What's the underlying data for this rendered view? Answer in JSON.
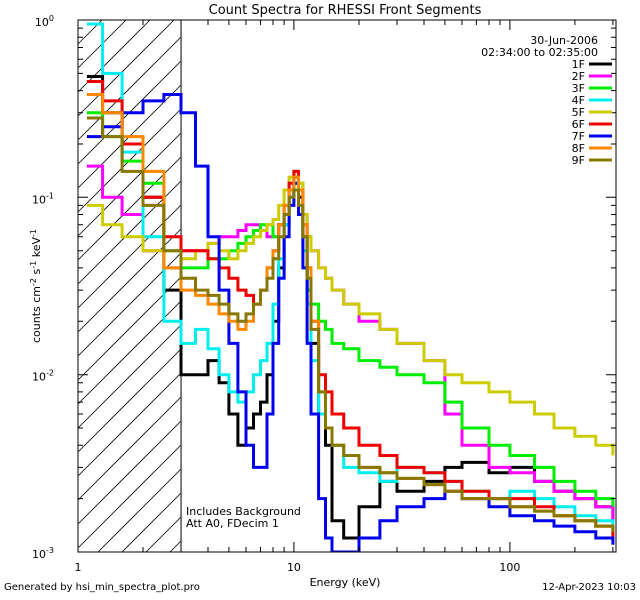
{
  "chart_data": {
    "type": "line",
    "title": "Count Spectra for RHESSI Front Segments",
    "xlabel": "Energy (keV)",
    "ylabel": "counts cm",
    "ylabel_sup1": "-2",
    "ylabel_mid": " s",
    "ylabel_sup2": "-1",
    "ylabel_end": " keV",
    "ylabel_sup3": "-1",
    "xscale": "log",
    "yscale": "log",
    "xlim": [
      1,
      310
    ],
    "ylim": [
      0.001,
      1.0
    ],
    "x_ticks": [
      {
        "value": 1,
        "label": "1"
      },
      {
        "value": 10,
        "label": "10"
      },
      {
        "value": 100,
        "label": "100"
      }
    ],
    "y_ticks": [
      {
        "value": 0.001,
        "base": "10",
        "exp": "-3"
      },
      {
        "value": 0.01,
        "base": "10",
        "exp": "-2"
      },
      {
        "value": 0.1,
        "base": "10",
        "exp": "-1"
      },
      {
        "value": 1,
        "base": "10",
        "exp": "0"
      }
    ],
    "date": "30-Jun-2006",
    "time_range": "02:34:00 to 02:35:00",
    "notes": [
      "Includes Background",
      "Att A0, FDecim 1"
    ],
    "shaded_region_below_kev": 3,
    "series": [
      {
        "name": "1F",
        "color": "#000000",
        "x": [
          1.1,
          1.3,
          1.6,
          2.0,
          2.5,
          3.0,
          3.5,
          4.0,
          4.5,
          5.0,
          5.5,
          6.0,
          6.5,
          7.0,
          7.5,
          8.0,
          8.5,
          9.0,
          9.5,
          10.0,
          10.5,
          11.0,
          11.5,
          12.0,
          13.0,
          14.0,
          15.0,
          17.0,
          20.0,
          25.0,
          30.0,
          40.0,
          50.0,
          60.0,
          80.0,
          100.0,
          130.0,
          160.0,
          200.0,
          250.0,
          300.0
        ],
        "y": [
          0.48,
          0.3,
          0.2,
          0.1,
          0.03,
          0.01,
          0.01,
          0.012,
          0.009,
          0.006,
          0.004,
          0.005,
          0.006,
          0.007,
          0.01,
          0.02,
          0.04,
          0.07,
          0.1,
          0.12,
          0.1,
          0.06,
          0.03,
          0.015,
          0.006,
          0.004,
          0.0015,
          0.0012,
          0.0018,
          0.0025,
          0.0022,
          0.0025,
          0.003,
          0.0032,
          0.0028,
          0.003,
          0.0025,
          0.0022,
          0.002,
          0.0018,
          0.0015
        ]
      },
      {
        "name": "2F",
        "color": "#ff00ff",
        "x": [
          1.1,
          1.3,
          1.6,
          2.0,
          2.5,
          3.0,
          3.5,
          4.0,
          4.5,
          5.0,
          5.5,
          6.0,
          6.5,
          7.0,
          7.5,
          8.0,
          8.5,
          9.0,
          9.5,
          10.0,
          10.5,
          11.0,
          11.5,
          12.0,
          13.0,
          14.0,
          15.0,
          17.0,
          20.0,
          25.0,
          30.0,
          40.0,
          50.0,
          60.0,
          80.0,
          100.0,
          130.0,
          160.0,
          200.0,
          250.0,
          300.0
        ],
        "y": [
          0.15,
          0.1,
          0.08,
          0.05,
          0.04,
          0.05,
          0.05,
          0.055,
          0.06,
          0.06,
          0.065,
          0.07,
          0.07,
          0.065,
          0.06,
          0.06,
          0.07,
          0.08,
          0.1,
          0.13,
          0.11,
          0.08,
          0.06,
          0.05,
          0.04,
          0.035,
          0.03,
          0.025,
          0.02,
          0.018,
          0.015,
          0.012,
          0.006,
          0.004,
          0.003,
          0.0028,
          0.0025,
          0.0022,
          0.002,
          0.0018,
          0.0015
        ]
      },
      {
        "name": "3F",
        "color": "#00ee00",
        "x": [
          1.1,
          1.3,
          1.6,
          2.0,
          2.5,
          3.0,
          3.5,
          4.0,
          4.5,
          5.0,
          5.5,
          6.0,
          6.5,
          7.0,
          7.5,
          8.0,
          8.5,
          9.0,
          9.5,
          10.0,
          10.5,
          11.0,
          11.5,
          12.0,
          13.0,
          14.0,
          15.0,
          17.0,
          20.0,
          25.0,
          30.0,
          40.0,
          50.0,
          60.0,
          80.0,
          100.0,
          130.0,
          160.0,
          200.0,
          250.0,
          300.0
        ],
        "y": [
          0.3,
          0.22,
          0.16,
          0.12,
          0.05,
          0.04,
          0.04,
          0.045,
          0.045,
          0.05,
          0.055,
          0.06,
          0.065,
          0.07,
          0.07,
          0.06,
          0.07,
          0.08,
          0.1,
          0.13,
          0.12,
          0.06,
          0.03,
          0.025,
          0.02,
          0.018,
          0.015,
          0.014,
          0.012,
          0.011,
          0.01,
          0.009,
          0.007,
          0.005,
          0.004,
          0.0035,
          0.003,
          0.0025,
          0.0022,
          0.002,
          0.0018
        ]
      },
      {
        "name": "4F",
        "color": "#00eeee",
        "x": [
          1.1,
          1.3,
          1.6,
          2.0,
          2.5,
          3.0,
          3.5,
          4.0,
          4.5,
          5.0,
          5.5,
          6.0,
          6.5,
          7.0,
          7.5,
          8.0,
          8.5,
          9.0,
          9.5,
          10.0,
          10.5,
          11.0,
          11.5,
          12.0,
          13.0,
          14.0,
          15.0,
          17.0,
          20.0,
          25.0,
          30.0,
          40.0,
          50.0,
          60.0,
          80.0,
          100.0,
          130.0,
          160.0,
          200.0,
          250.0,
          300.0
        ],
        "y": [
          0.95,
          0.5,
          0.18,
          0.06,
          0.02,
          0.015,
          0.018,
          0.014,
          0.01,
          0.008,
          0.007,
          0.008,
          0.01,
          0.012,
          0.015,
          0.025,
          0.045,
          0.07,
          0.1,
          0.12,
          0.09,
          0.05,
          0.025,
          0.012,
          0.006,
          0.005,
          0.004,
          0.003,
          0.0028,
          0.0025,
          0.003,
          0.0028,
          0.0025,
          0.0022,
          0.002,
          0.0022,
          0.002,
          0.0018,
          0.0016,
          0.0015,
          0.0014
        ]
      },
      {
        "name": "5F",
        "color": "#cccc00",
        "x": [
          1.1,
          1.3,
          1.6,
          2.0,
          2.5,
          3.0,
          3.5,
          4.0,
          4.5,
          5.0,
          5.5,
          6.0,
          6.5,
          7.0,
          7.5,
          8.0,
          8.5,
          9.0,
          9.5,
          10.0,
          10.5,
          11.0,
          11.5,
          12.0,
          13.0,
          14.0,
          15.0,
          17.0,
          20.0,
          25.0,
          30.0,
          40.0,
          50.0,
          60.0,
          80.0,
          100.0,
          130.0,
          160.0,
          200.0,
          250.0,
          300.0
        ],
        "y": [
          0.09,
          0.07,
          0.06,
          0.05,
          0.04,
          0.045,
          0.05,
          0.055,
          0.05,
          0.045,
          0.05,
          0.055,
          0.06,
          0.065,
          0.07,
          0.075,
          0.09,
          0.11,
          0.13,
          0.14,
          0.12,
          0.08,
          0.06,
          0.05,
          0.04,
          0.035,
          0.03,
          0.025,
          0.022,
          0.018,
          0.015,
          0.012,
          0.01,
          0.009,
          0.008,
          0.007,
          0.006,
          0.005,
          0.0045,
          0.004,
          0.0035
        ]
      },
      {
        "name": "6F",
        "color": "#ee0000",
        "x": [
          1.1,
          1.3,
          1.6,
          2.0,
          2.5,
          3.0,
          3.5,
          4.0,
          4.5,
          5.0,
          5.5,
          6.0,
          6.5,
          7.0,
          7.5,
          8.0,
          8.5,
          9.0,
          9.5,
          10.0,
          10.5,
          11.0,
          11.5,
          12.0,
          13.0,
          14.0,
          15.0,
          17.0,
          20.0,
          25.0,
          30.0,
          40.0,
          50.0,
          60.0,
          80.0,
          100.0,
          130.0,
          160.0,
          200.0,
          250.0,
          300.0
        ],
        "y": [
          0.45,
          0.35,
          0.2,
          0.1,
          0.06,
          0.05,
          0.05,
          0.045,
          0.04,
          0.035,
          0.03,
          0.028,
          0.025,
          0.03,
          0.04,
          0.05,
          0.07,
          0.09,
          0.12,
          0.14,
          0.11,
          0.07,
          0.04,
          0.02,
          0.01,
          0.008,
          0.006,
          0.005,
          0.004,
          0.0035,
          0.003,
          0.0028,
          0.0025,
          0.0022,
          0.002,
          0.002,
          0.0018,
          0.0016,
          0.0015,
          0.0014,
          0.0012
        ]
      },
      {
        "name": "7F",
        "color": "#0000ee",
        "x": [
          1.1,
          1.3,
          1.6,
          2.0,
          2.5,
          3.0,
          3.5,
          4.0,
          4.5,
          5.0,
          5.5,
          6.0,
          6.5,
          7.0,
          7.5,
          8.0,
          8.5,
          9.0,
          9.5,
          10.0,
          10.5,
          11.0,
          11.5,
          12.0,
          13.0,
          14.0,
          15.0,
          17.0,
          20.0,
          25.0,
          30.0,
          40.0,
          50.0,
          60.0,
          80.0,
          100.0,
          130.0,
          160.0,
          200.0,
          250.0,
          300.0
        ],
        "y": [
          0.22,
          0.25,
          0.3,
          0.35,
          0.38,
          0.3,
          0.15,
          0.06,
          0.03,
          0.015,
          0.008,
          0.004,
          0.003,
          0.003,
          0.006,
          0.015,
          0.035,
          0.06,
          0.09,
          0.12,
          0.08,
          0.04,
          0.015,
          0.006,
          0.002,
          0.0012,
          0.001,
          0.001,
          0.0012,
          0.0015,
          0.0018,
          0.002,
          0.0022,
          0.002,
          0.0018,
          0.0016,
          0.0015,
          0.0014,
          0.0013,
          0.0012,
          0.0011
        ]
      },
      {
        "name": "8F",
        "color": "#ff8800",
        "x": [
          1.1,
          1.3,
          1.6,
          2.0,
          2.5,
          3.0,
          3.5,
          4.0,
          4.5,
          5.0,
          5.5,
          6.0,
          6.5,
          7.0,
          7.5,
          8.0,
          8.5,
          9.0,
          9.5,
          10.0,
          10.5,
          11.0,
          11.5,
          12.0,
          13.0,
          14.0,
          15.0,
          17.0,
          20.0,
          25.0,
          30.0,
          40.0,
          50.0,
          60.0,
          80.0,
          100.0,
          130.0,
          160.0,
          200.0,
          250.0,
          300.0
        ],
        "y": [
          0.38,
          0.3,
          0.22,
          0.14,
          0.04,
          0.03,
          0.028,
          0.025,
          0.022,
          0.02,
          0.018,
          0.02,
          0.025,
          0.03,
          0.04,
          0.05,
          0.07,
          0.09,
          0.11,
          0.13,
          0.11,
          0.07,
          0.04,
          0.02,
          0.008,
          0.005,
          0.004,
          0.0035,
          0.003,
          0.0028,
          0.0026,
          0.0024,
          0.0022,
          0.002,
          0.002,
          0.0018,
          0.0017,
          0.0016,
          0.0015,
          0.0014,
          0.0013
        ]
      },
      {
        "name": "9F",
        "color": "#887700",
        "x": [
          1.1,
          1.3,
          1.6,
          2.0,
          2.5,
          3.0,
          3.5,
          4.0,
          4.5,
          5.0,
          5.5,
          6.0,
          6.5,
          7.0,
          7.5,
          8.0,
          8.5,
          9.0,
          9.5,
          10.0,
          10.5,
          11.0,
          11.5,
          12.0,
          13.0,
          14.0,
          15.0,
          17.0,
          20.0,
          25.0,
          30.0,
          40.0,
          50.0,
          60.0,
          80.0,
          100.0,
          130.0,
          160.0,
          200.0,
          250.0,
          300.0
        ],
        "y": [
          0.28,
          0.22,
          0.14,
          0.09,
          0.05,
          0.035,
          0.03,
          0.028,
          0.025,
          0.022,
          0.02,
          0.022,
          0.025,
          0.03,
          0.035,
          0.045,
          0.06,
          0.08,
          0.1,
          0.11,
          0.09,
          0.06,
          0.035,
          0.018,
          0.008,
          0.005,
          0.004,
          0.0035,
          0.003,
          0.0028,
          0.0026,
          0.0024,
          0.0022,
          0.002,
          0.002,
          0.0018,
          0.0017,
          0.0016,
          0.0015,
          0.0014,
          0.0013
        ]
      }
    ]
  },
  "footer": {
    "left": "Generated by hsi_min_spectra_plot.pro",
    "right": "12-Apr-2023 10:03"
  }
}
